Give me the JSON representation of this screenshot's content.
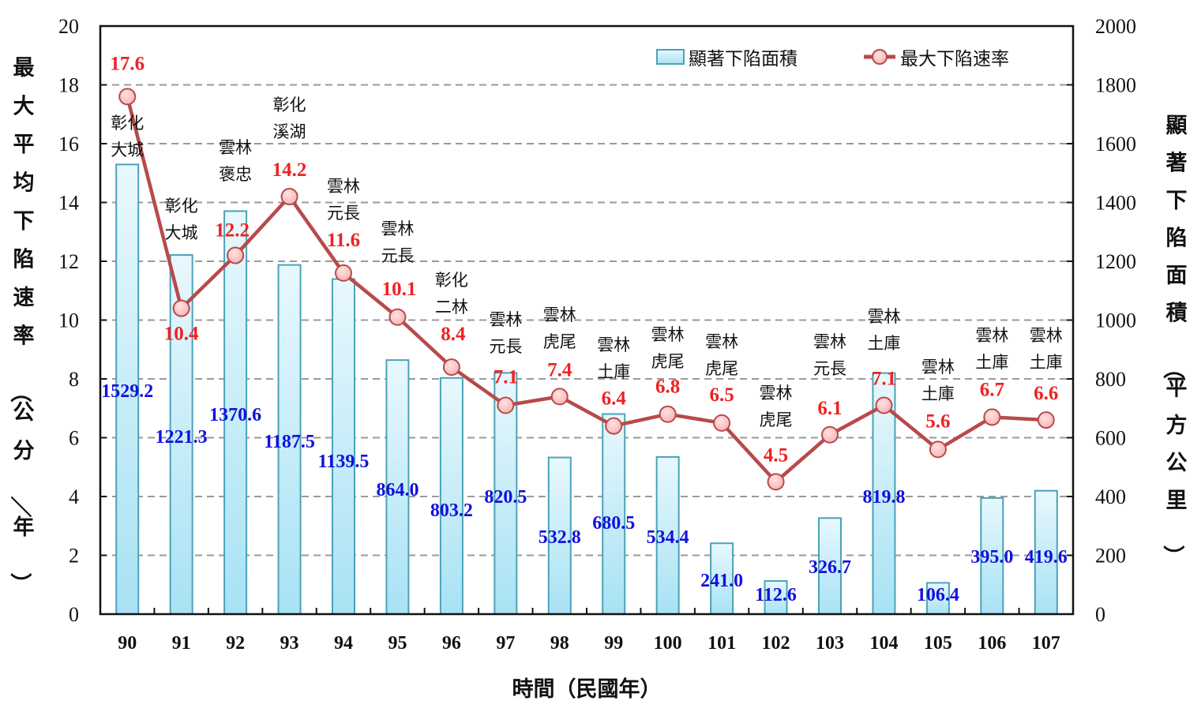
{
  "colors": {
    "bar_fill_top": "#e8f8fd",
    "bar_fill_bottom": "#a8e2f4",
    "bar_stroke": "#4aa3b8",
    "line": "#b84a4a",
    "marker_fill": "#f7b7b7",
    "rate_label": "#ee2222",
    "area_label": "#1111dd",
    "grid": "#9a9a9a"
  },
  "chart_data": {
    "type": "bar+line",
    "title": "",
    "xlabel": "時間（民國年）",
    "ylabel_left": "最大平均下陷速率（公分／年）",
    "ylabel_right": "顯著下陷面積（平方公里）",
    "ylim_left": [
      0,
      20
    ],
    "ylim_right": [
      0,
      2000
    ],
    "yticks_left": [
      "0",
      "2",
      "4",
      "6",
      "8",
      "10",
      "12",
      "14",
      "16",
      "18",
      "20"
    ],
    "yticks_right": [
      "0",
      "200",
      "400",
      "600",
      "800",
      "1000",
      "1200",
      "1400",
      "1600",
      "1800",
      "2000"
    ],
    "grid": true,
    "legend_position": "top-right",
    "categories": [
      "90",
      "91",
      "92",
      "93",
      "94",
      "95",
      "96",
      "97",
      "98",
      "99",
      "100",
      "101",
      "102",
      "103",
      "104",
      "105",
      "106",
      "107"
    ],
    "series": [
      {
        "name": "顯著下陷面積",
        "type": "bar",
        "axis": "right",
        "values": [
          1529.2,
          1221.3,
          1370.6,
          1187.5,
          1139.5,
          864.0,
          803.2,
          820.5,
          532.8,
          680.5,
          534.4,
          241.0,
          112.6,
          326.7,
          819.8,
          106.4,
          395.0,
          419.6
        ],
        "labels": [
          "1529.2",
          "1221.3",
          "1370.6",
          "1187.5",
          "1139.5",
          "864.0",
          "803.2",
          "820.5",
          "532.8",
          "680.5",
          "534.4",
          "241.0",
          "112.6",
          "326.7",
          "819.8",
          "106.4",
          "395.0",
          "419.6"
        ]
      },
      {
        "name": "最大下陷速率",
        "type": "line",
        "axis": "left",
        "values": [
          17.6,
          10.4,
          12.2,
          14.2,
          11.6,
          10.1,
          8.4,
          7.1,
          7.4,
          6.4,
          6.8,
          6.5,
          4.5,
          6.1,
          7.1,
          5.6,
          6.7,
          6.6
        ],
        "labels": [
          "17.6",
          "10.4",
          "12.2",
          "14.2",
          "11.6",
          "10.1",
          "8.4",
          "7.1",
          "7.4",
          "6.4",
          "6.8",
          "6.5",
          "4.5",
          "6.1",
          "7.1",
          "5.6",
          "6.7",
          "6.6"
        ]
      }
    ],
    "annotations": [
      [
        "彰化",
        "大城"
      ],
      [
        "彰化",
        "大城"
      ],
      [
        "雲林",
        "褒忠"
      ],
      [
        "彰化",
        "溪湖"
      ],
      [
        "雲林",
        "元長"
      ],
      [
        "雲林",
        "元長"
      ],
      [
        "彰化",
        "二林"
      ],
      [
        "雲林",
        "元長"
      ],
      [
        "雲林",
        "虎尾"
      ],
      [
        "雲林",
        "土庫"
      ],
      [
        "雲林",
        "虎尾"
      ],
      [
        "雲林",
        "虎尾"
      ],
      [
        "雲林",
        "虎尾"
      ],
      [
        "雲林",
        "元長"
      ],
      [
        "雲林",
        "土庫"
      ],
      [
        "雲林",
        "土庫"
      ],
      [
        "雲林",
        "土庫"
      ],
      [
        "雲林",
        "土庫"
      ]
    ]
  }
}
